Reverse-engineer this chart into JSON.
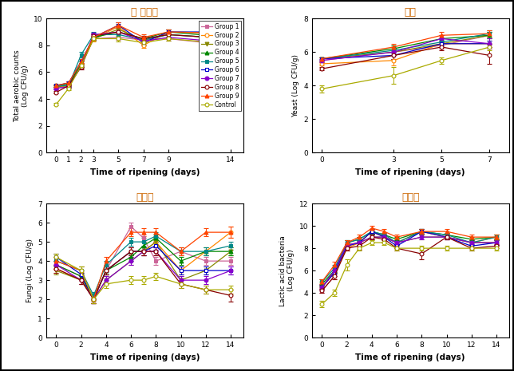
{
  "title_tl": "옵 세균수",
  "title_tr": "효모",
  "title_bl": "곡팬이",
  "title_br": "젠산균",
  "title_color": "#CC6600",
  "groups": [
    "Group 1",
    "Group 2",
    "Group 3",
    "Group 4",
    "Group 5",
    "Group 6",
    "Group 7",
    "Group 8",
    "Group 9",
    "Control"
  ],
  "colors": [
    "#cc6699",
    "#ff8800",
    "#888800",
    "#008800",
    "#008888",
    "#0000cc",
    "#8800cc",
    "#880000",
    "#ff4400",
    "#aaaa00"
  ],
  "markers": [
    "s",
    "o",
    "v",
    "^",
    "s",
    "s",
    "o",
    "o",
    "^",
    "o"
  ],
  "fillstyles": [
    "full",
    "none",
    "full",
    "full",
    "full",
    "none",
    "full",
    "none",
    "full",
    "none"
  ],
  "tl": {
    "x": [
      0,
      1,
      2,
      3,
      5,
      7,
      9,
      14
    ],
    "ylabel": "Total aerobic counts\n(Log CFU/g)",
    "xlabel": "Time of ripening (days)",
    "ylim": [
      0,
      10
    ],
    "yticks": [
      0,
      2,
      4,
      6,
      8,
      10
    ],
    "xticks": [
      0,
      1,
      2,
      3,
      5,
      7,
      9,
      14
    ],
    "groups": {
      "Group 1": {
        "y": [
          4.8,
          5.0,
          6.4,
          8.5,
          8.6,
          8.4,
          8.5,
          8.0
        ],
        "err": [
          0.1,
          0.15,
          0.2,
          0.15,
          0.2,
          0.15,
          0.15,
          0.2
        ]
      },
      "Group 2": {
        "y": [
          5.0,
          5.2,
          6.6,
          8.5,
          9.4,
          8.0,
          9.0,
          8.9
        ],
        "err": [
          0.1,
          0.1,
          0.2,
          0.2,
          0.2,
          0.2,
          0.2,
          0.2
        ]
      },
      "Group 3": {
        "y": [
          4.9,
          5.0,
          6.5,
          8.5,
          9.2,
          8.4,
          8.8,
          8.5
        ],
        "err": [
          0.1,
          0.15,
          0.2,
          0.15,
          0.2,
          0.15,
          0.15,
          0.2
        ]
      },
      "Group 4": {
        "y": [
          5.0,
          5.1,
          6.6,
          8.6,
          9.0,
          8.5,
          9.0,
          8.6
        ],
        "err": [
          0.1,
          0.1,
          0.2,
          0.2,
          0.2,
          0.2,
          0.2,
          0.2
        ]
      },
      "Group 5": {
        "y": [
          5.0,
          5.0,
          7.3,
          8.8,
          8.8,
          8.4,
          8.8,
          8.5
        ],
        "err": [
          0.1,
          0.1,
          0.2,
          0.2,
          0.2,
          0.15,
          0.2,
          0.2
        ]
      },
      "Group 6": {
        "y": [
          5.0,
          5.2,
          6.8,
          8.6,
          9.5,
          8.2,
          9.0,
          9.0
        ],
        "err": [
          0.1,
          0.1,
          0.2,
          0.2,
          0.2,
          0.2,
          0.2,
          0.2
        ]
      },
      "Group 7": {
        "y": [
          4.8,
          4.9,
          6.5,
          8.8,
          9.0,
          8.3,
          8.6,
          8.2
        ],
        "err": [
          0.1,
          0.15,
          0.2,
          0.15,
          0.2,
          0.15,
          0.15,
          0.2
        ]
      },
      "Group 8": {
        "y": [
          4.5,
          5.0,
          6.4,
          8.7,
          9.0,
          8.5,
          8.8,
          8.5
        ],
        "err": [
          0.1,
          0.1,
          0.2,
          0.2,
          0.2,
          0.2,
          0.2,
          0.2
        ]
      },
      "Group 9": {
        "y": [
          5.0,
          5.2,
          6.8,
          8.6,
          9.5,
          8.6,
          9.0,
          8.9
        ],
        "err": [
          0.1,
          0.1,
          0.2,
          0.2,
          0.2,
          0.2,
          0.2,
          0.2
        ]
      },
      "Control": {
        "y": [
          3.6,
          4.8,
          6.5,
          8.5,
          8.5,
          8.2,
          8.5,
          8.1
        ],
        "err": [
          0.1,
          0.15,
          0.2,
          0.15,
          0.2,
          0.15,
          0.15,
          0.2
        ]
      }
    }
  },
  "tr": {
    "x": [
      0,
      3,
      5,
      7
    ],
    "ylabel": "Yeast (Log CFU/g)",
    "xlabel": "Time of ripening (days)",
    "ylim": [
      0,
      8
    ],
    "yticks": [
      0,
      2,
      4,
      6,
      8
    ],
    "xticks": [
      0,
      3,
      5,
      7
    ],
    "groups": {
      "Group 1": {
        "y": [
          5.5,
          6.0,
          6.4,
          7.0
        ],
        "err": [
          0.1,
          0.2,
          0.2,
          0.2
        ]
      },
      "Group 2": {
        "y": [
          5.3,
          5.5,
          6.5,
          6.5
        ],
        "err": [
          0.1,
          0.3,
          0.2,
          0.2
        ]
      },
      "Group 3": {
        "y": [
          5.6,
          6.0,
          6.5,
          7.0
        ],
        "err": [
          0.1,
          0.2,
          0.2,
          0.2
        ]
      },
      "Group 4": {
        "y": [
          5.6,
          6.2,
          6.8,
          7.0
        ],
        "err": [
          0.1,
          0.2,
          0.2,
          0.2
        ]
      },
      "Group 5": {
        "y": [
          5.6,
          6.1,
          6.6,
          7.1
        ],
        "err": [
          0.1,
          0.2,
          0.2,
          0.2
        ]
      },
      "Group 6": {
        "y": [
          5.6,
          5.8,
          6.5,
          6.5
        ],
        "err": [
          0.1,
          0.2,
          0.2,
          0.2
        ]
      },
      "Group 7": {
        "y": [
          5.5,
          6.0,
          6.8,
          6.5
        ],
        "err": [
          0.1,
          0.2,
          0.2,
          0.3
        ]
      },
      "Group 8": {
        "y": [
          5.0,
          5.8,
          6.3,
          5.8
        ],
        "err": [
          0.1,
          0.2,
          0.2,
          0.5
        ]
      },
      "Group 9": {
        "y": [
          5.6,
          6.3,
          7.0,
          7.1
        ],
        "err": [
          0.1,
          0.2,
          0.2,
          0.2
        ]
      },
      "Control": {
        "y": [
          3.8,
          4.6,
          5.5,
          6.3
        ],
        "err": [
          0.2,
          0.5,
          0.2,
          0.2
        ]
      }
    }
  },
  "bl": {
    "x": [
      0,
      2,
      3,
      4,
      6,
      7,
      8,
      10,
      12,
      14
    ],
    "ylabel": "Fungi (Log CFU/g)",
    "xlabel": "Time of ripening (days)",
    "ylim": [
      0,
      7
    ],
    "yticks": [
      0,
      1,
      2,
      3,
      4,
      5,
      6,
      7
    ],
    "xticks": [
      0,
      2,
      4,
      6,
      8,
      10,
      12,
      14
    ],
    "groups": {
      "Group 1": {
        "y": [
          3.8,
          3.2,
          2.0,
          3.5,
          5.8,
          5.2,
          4.0,
          4.5,
          4.0,
          4.0
        ],
        "err": [
          0.2,
          0.2,
          0.2,
          0.2,
          0.2,
          0.2,
          0.2,
          0.2,
          0.2,
          0.2
        ]
      },
      "Group 2": {
        "y": [
          3.6,
          3.0,
          2.0,
          3.5,
          4.5,
          4.5,
          5.0,
          3.5,
          4.5,
          5.5
        ],
        "err": [
          0.2,
          0.2,
          0.2,
          0.2,
          0.2,
          0.2,
          0.2,
          0.2,
          0.2,
          0.3
        ]
      },
      "Group 3": {
        "y": [
          3.5,
          3.0,
          2.0,
          3.0,
          4.0,
          4.5,
          5.0,
          3.0,
          3.5,
          4.5
        ],
        "err": [
          0.2,
          0.2,
          0.2,
          0.2,
          0.2,
          0.2,
          0.2,
          0.2,
          0.2,
          0.2
        ]
      },
      "Group 4": {
        "y": [
          3.8,
          3.2,
          2.0,
          3.5,
          4.2,
          4.8,
          5.2,
          4.0,
          4.5,
          4.5
        ],
        "err": [
          0.2,
          0.2,
          0.2,
          0.2,
          0.2,
          0.2,
          0.2,
          0.2,
          0.2,
          0.2
        ]
      },
      "Group 5": {
        "y": [
          4.0,
          3.5,
          2.2,
          3.8,
          5.0,
          5.0,
          5.3,
          4.5,
          4.5,
          4.8
        ],
        "err": [
          0.2,
          0.2,
          0.2,
          0.2,
          0.2,
          0.2,
          0.2,
          0.2,
          0.2,
          0.2
        ]
      },
      "Group 6": {
        "y": [
          4.2,
          3.3,
          2.0,
          3.5,
          4.5,
          4.5,
          4.8,
          3.5,
          3.5,
          3.5
        ],
        "err": [
          0.2,
          0.2,
          0.2,
          0.2,
          0.2,
          0.2,
          0.2,
          0.2,
          0.2,
          0.2
        ]
      },
      "Group 7": {
        "y": [
          3.8,
          3.0,
          2.0,
          3.0,
          4.0,
          4.5,
          4.5,
          3.0,
          3.0,
          3.5
        ],
        "err": [
          0.2,
          0.2,
          0.2,
          0.2,
          0.2,
          0.2,
          0.2,
          0.2,
          0.2,
          0.2
        ]
      },
      "Group 8": {
        "y": [
          3.6,
          3.0,
          2.0,
          3.5,
          4.5,
          4.5,
          4.5,
          2.8,
          2.5,
          2.2
        ],
        "err": [
          0.2,
          0.2,
          0.2,
          0.2,
          0.2,
          0.2,
          0.2,
          0.2,
          0.2,
          0.3
        ]
      },
      "Group 9": {
        "y": [
          4.0,
          3.5,
          2.0,
          4.0,
          5.5,
          5.5,
          5.5,
          4.5,
          5.5,
          5.5
        ],
        "err": [
          0.2,
          0.2,
          0.2,
          0.2,
          0.2,
          0.2,
          0.2,
          0.2,
          0.2,
          0.3
        ]
      },
      "Control": {
        "y": [
          4.2,
          3.5,
          2.0,
          2.8,
          3.0,
          3.0,
          3.2,
          2.8,
          2.5,
          2.5
        ],
        "err": [
          0.2,
          0.2,
          0.2,
          0.2,
          0.2,
          0.2,
          0.2,
          0.2,
          0.2,
          0.2
        ]
      }
    }
  },
  "br": {
    "x": [
      0,
      1,
      2,
      3,
      4,
      5,
      6,
      8,
      10,
      12,
      14
    ],
    "ylabel": "Lactic acid bacteria\n(Log CFU/g)",
    "xlabel": "Time of ripening (days)",
    "ylim": [
      0,
      12
    ],
    "yticks": [
      0,
      2,
      4,
      6,
      8,
      10,
      12
    ],
    "xticks": [
      0,
      2,
      4,
      6,
      8,
      10,
      12,
      14
    ],
    "groups": {
      "Group 1": {
        "y": [
          4.2,
          5.5,
          8.2,
          8.5,
          9.5,
          9.0,
          8.5,
          9.5,
          9.0,
          8.5,
          8.5
        ],
        "err": [
          0.2,
          0.3,
          0.2,
          0.2,
          0.2,
          0.2,
          0.2,
          0.2,
          0.2,
          0.2,
          0.2
        ]
      },
      "Group 2": {
        "y": [
          4.5,
          5.8,
          8.0,
          8.5,
          9.5,
          9.0,
          8.5,
          9.5,
          9.0,
          8.5,
          9.0
        ],
        "err": [
          0.2,
          0.3,
          0.2,
          0.2,
          0.2,
          0.2,
          0.2,
          0.2,
          0.2,
          0.2,
          0.2
        ]
      },
      "Group 3": {
        "y": [
          4.5,
          6.0,
          8.3,
          8.5,
          9.0,
          9.0,
          8.5,
          9.0,
          9.0,
          8.5,
          8.5
        ],
        "err": [
          0.2,
          0.3,
          0.2,
          0.2,
          0.2,
          0.2,
          0.2,
          0.2,
          0.2,
          0.2,
          0.2
        ]
      },
      "Group 4": {
        "y": [
          4.8,
          6.0,
          8.5,
          8.8,
          9.5,
          9.2,
          8.8,
          9.5,
          9.2,
          8.8,
          9.0
        ],
        "err": [
          0.2,
          0.3,
          0.2,
          0.2,
          0.2,
          0.2,
          0.2,
          0.2,
          0.2,
          0.2,
          0.2
        ]
      },
      "Group 5": {
        "y": [
          5.0,
          6.2,
          8.5,
          8.8,
          9.5,
          9.2,
          8.5,
          9.5,
          9.2,
          8.5,
          9.0
        ],
        "err": [
          0.2,
          0.3,
          0.2,
          0.2,
          0.2,
          0.2,
          0.2,
          0.2,
          0.2,
          0.2,
          0.2
        ]
      },
      "Group 6": {
        "y": [
          4.5,
          5.8,
          8.2,
          8.5,
          9.5,
          9.0,
          8.2,
          9.5,
          9.0,
          8.2,
          8.5
        ],
        "err": [
          0.2,
          0.3,
          0.2,
          0.2,
          0.2,
          0.2,
          0.2,
          0.2,
          0.2,
          0.2,
          0.2
        ]
      },
      "Group 7": {
        "y": [
          4.5,
          6.0,
          8.3,
          8.5,
          9.0,
          9.0,
          8.5,
          9.0,
          9.0,
          8.5,
          8.5
        ],
        "err": [
          0.2,
          0.3,
          0.2,
          0.2,
          0.2,
          0.2,
          0.2,
          0.2,
          0.2,
          0.2,
          0.2
        ]
      },
      "Group 8": {
        "y": [
          4.2,
          5.5,
          8.0,
          8.2,
          9.0,
          8.8,
          8.0,
          7.5,
          9.0,
          8.0,
          8.2
        ],
        "err": [
          0.2,
          0.3,
          0.2,
          0.3,
          0.2,
          0.2,
          0.2,
          0.5,
          0.2,
          0.2,
          0.2
        ]
      },
      "Group 9": {
        "y": [
          5.0,
          6.5,
          8.5,
          9.0,
          9.8,
          9.5,
          9.0,
          9.5,
          9.5,
          9.0,
          9.0
        ],
        "err": [
          0.2,
          0.3,
          0.2,
          0.2,
          0.2,
          0.2,
          0.2,
          0.2,
          0.2,
          0.2,
          0.2
        ]
      },
      "Control": {
        "y": [
          3.0,
          4.0,
          6.5,
          8.0,
          8.5,
          8.5,
          8.0,
          8.0,
          8.0,
          8.0,
          8.0
        ],
        "err": [
          0.3,
          0.3,
          0.5,
          0.2,
          0.2,
          0.2,
          0.2,
          0.2,
          0.2,
          0.2,
          0.2
        ]
      }
    }
  },
  "legend_fontsize": 5.5,
  "tick_fontsize": 6.5,
  "label_fontsize": 7.5,
  "ylabel_fontsize": 6.5
}
